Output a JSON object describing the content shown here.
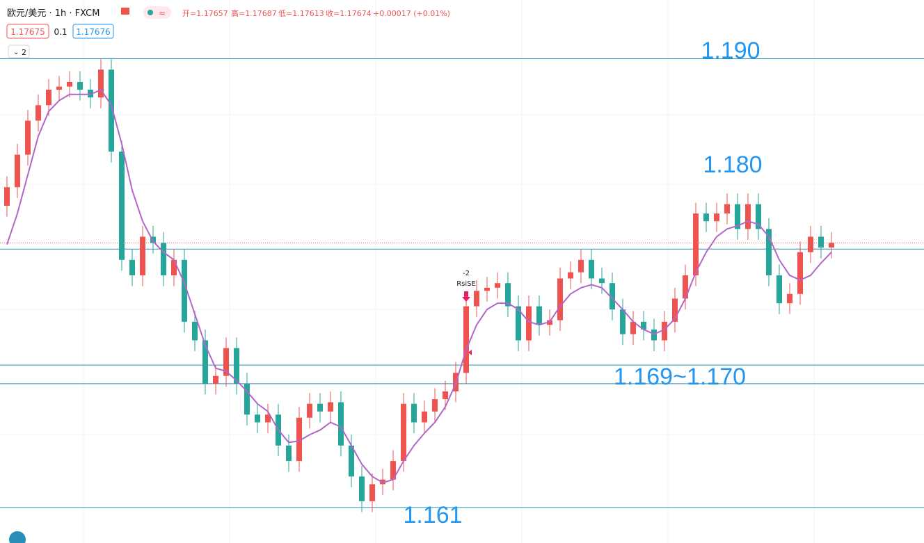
{
  "header": {
    "symbol": "欧元/美元 · 1h · FXCM",
    "ohlc": [
      "开=1.17657",
      "高=1.17687",
      "低=1.17613",
      "收=1.17674",
      "+0.00017 (+0.01%)"
    ],
    "bid": "1.17675",
    "spread": "0.1",
    "ask": "1.17676",
    "indicators": "2"
  },
  "chart_data": {
    "type": "candlestick",
    "up_color": "#ef5350",
    "down_color": "#26a69a",
    "ma_color": "#b266c9",
    "level_color": "#2a8fb8",
    "ylim": [
      1.1587,
      1.1938
    ],
    "open": [
      1.1805,
      1.1817,
      1.1838,
      1.186,
      1.187,
      1.188,
      1.1882,
      1.1885,
      1.188,
      1.1875,
      1.1893,
      1.184,
      1.177,
      1.176,
      1.1785,
      1.1781,
      1.176,
      1.177,
      1.173,
      1.1718,
      1.169,
      1.1695,
      1.1713,
      1.169,
      1.167,
      1.1665,
      1.167,
      1.165,
      1.164,
      1.1668,
      1.1677,
      1.1672,
      1.1678,
      1.165,
      1.163,
      1.1614,
      1.1625,
      1.1628,
      1.164,
      1.1677,
      1.1665,
      1.1672,
      1.168,
      1.1685,
      1.1697,
      1.174,
      1.175,
      1.1752,
      1.1755,
      1.174,
      1.1718,
      1.174,
      1.1728,
      1.1731,
      1.1758,
      1.1762,
      1.177,
      1.1758,
      1.1755,
      1.1738,
      1.1722,
      1.173,
      1.1725,
      1.1718,
      1.173,
      1.1745,
      1.176,
      1.18,
      1.1795,
      1.18,
      1.1806,
      1.179,
      1.1806,
      1.179,
      1.176,
      1.1742,
      1.1748,
      1.1775,
      1.1785,
      1.1778
    ],
    "high": [
      1.1824,
      1.1845,
      1.1867,
      1.1877,
      1.1887,
      1.1889,
      1.1892,
      1.1892,
      1.1887,
      1.19,
      1.19,
      1.1847,
      1.1777,
      1.1792,
      1.1792,
      1.1788,
      1.1777,
      1.1777,
      1.1737,
      1.1725,
      1.1702,
      1.172,
      1.172,
      1.1697,
      1.1677,
      1.1677,
      1.1677,
      1.1657,
      1.1675,
      1.1684,
      1.1684,
      1.1685,
      1.1685,
      1.1657,
      1.1637,
      1.1632,
      1.1635,
      1.1647,
      1.1684,
      1.1684,
      1.1679,
      1.1687,
      1.1692,
      1.1704,
      1.1747,
      1.1757,
      1.1759,
      1.1762,
      1.1762,
      1.1747,
      1.1747,
      1.1747,
      1.1738,
      1.1765,
      1.1769,
      1.1777,
      1.1777,
      1.1765,
      1.1762,
      1.1745,
      1.1737,
      1.1737,
      1.1732,
      1.1737,
      1.1752,
      1.1767,
      1.1807,
      1.1807,
      1.1807,
      1.1813,
      1.1813,
      1.1813,
      1.1813,
      1.1797,
      1.1767,
      1.1755,
      1.1782,
      1.1792,
      1.1792,
      1.1788
    ],
    "low": [
      1.1798,
      1.181,
      1.1831,
      1.1853,
      1.1863,
      1.1873,
      1.1875,
      1.1873,
      1.1868,
      1.1868,
      1.1833,
      1.1763,
      1.1753,
      1.1753,
      1.1774,
      1.1753,
      1.1753,
      1.1723,
      1.1711,
      1.1683,
      1.1683,
      1.1688,
      1.1683,
      1.1663,
      1.1658,
      1.1658,
      1.1643,
      1.1633,
      1.1633,
      1.1661,
      1.1665,
      1.1665,
      1.1643,
      1.1623,
      1.1607,
      1.1607,
      1.1618,
      1.1621,
      1.1633,
      1.1658,
      1.1658,
      1.1665,
      1.1673,
      1.1678,
      1.169,
      1.1733,
      1.1743,
      1.1745,
      1.1733,
      1.1711,
      1.1711,
      1.1721,
      1.1721,
      1.1724,
      1.1751,
      1.1755,
      1.1751,
      1.1748,
      1.1731,
      1.1715,
      1.1715,
      1.1718,
      1.1711,
      1.1711,
      1.1723,
      1.1738,
      1.1753,
      1.1788,
      1.1788,
      1.1793,
      1.1783,
      1.1783,
      1.1783,
      1.1753,
      1.1735,
      1.1735,
      1.1741,
      1.1768,
      1.1771,
      1.1771
    ],
    "close": [
      1.1817,
      1.1838,
      1.186,
      1.187,
      1.188,
      1.1882,
      1.1885,
      1.188,
      1.1875,
      1.1893,
      1.184,
      1.177,
      1.176,
      1.1785,
      1.1781,
      1.176,
      1.177,
      1.173,
      1.1718,
      1.169,
      1.1695,
      1.1713,
      1.169,
      1.167,
      1.1665,
      1.167,
      1.165,
      1.164,
      1.1668,
      1.1677,
      1.1672,
      1.1678,
      1.165,
      1.163,
      1.1614,
      1.1625,
      1.1628,
      1.164,
      1.1677,
      1.1665,
      1.1672,
      1.168,
      1.1685,
      1.1697,
      1.174,
      1.175,
      1.1752,
      1.1755,
      1.174,
      1.1718,
      1.174,
      1.1728,
      1.1731,
      1.1758,
      1.1762,
      1.177,
      1.1758,
      1.1755,
      1.1738,
      1.1722,
      1.173,
      1.1725,
      1.1718,
      1.173,
      1.1745,
      1.176,
      1.18,
      1.1795,
      1.18,
      1.1806,
      1.179,
      1.1806,
      1.179,
      1.176,
      1.1742,
      1.1748,
      1.1775,
      1.1785,
      1.1778,
      1.1781
    ],
    "ma": [
      1.178,
      1.18,
      1.1825,
      1.185,
      1.1866,
      1.1873,
      1.1877,
      1.1877,
      1.1877,
      1.188,
      1.187,
      1.1845,
      1.1815,
      1.1795,
      1.1782,
      1.1775,
      1.177,
      1.1755,
      1.1735,
      1.1715,
      1.17,
      1.1698,
      1.1692,
      1.1685,
      1.1677,
      1.1672,
      1.166,
      1.1652,
      1.1653,
      1.1657,
      1.166,
      1.1665,
      1.1662,
      1.165,
      1.1638,
      1.163,
      1.1626,
      1.1628,
      1.164,
      1.165,
      1.1658,
      1.1665,
      1.1675,
      1.169,
      1.1712,
      1.1728,
      1.1738,
      1.1742,
      1.1742,
      1.1738,
      1.173,
      1.1728,
      1.173,
      1.174,
      1.1748,
      1.1752,
      1.1754,
      1.1752,
      1.1745,
      1.1738,
      1.173,
      1.1725,
      1.1722,
      1.1725,
      1.1732,
      1.1745,
      1.1762,
      1.1775,
      1.1785,
      1.179,
      1.1792,
      1.1795,
      1.1793,
      1.1785,
      1.177,
      1.176,
      1.1757,
      1.176,
      1.1768,
      1.1775
    ],
    "levels": [
      1.19,
      1.1777,
      1.1702,
      1.169,
      1.161
    ],
    "annotations": [
      "1.190",
      "1.180",
      "1.169~1.170",
      "1.161"
    ],
    "signal": {
      "count": "-2",
      "name": "RsiSE"
    }
  }
}
